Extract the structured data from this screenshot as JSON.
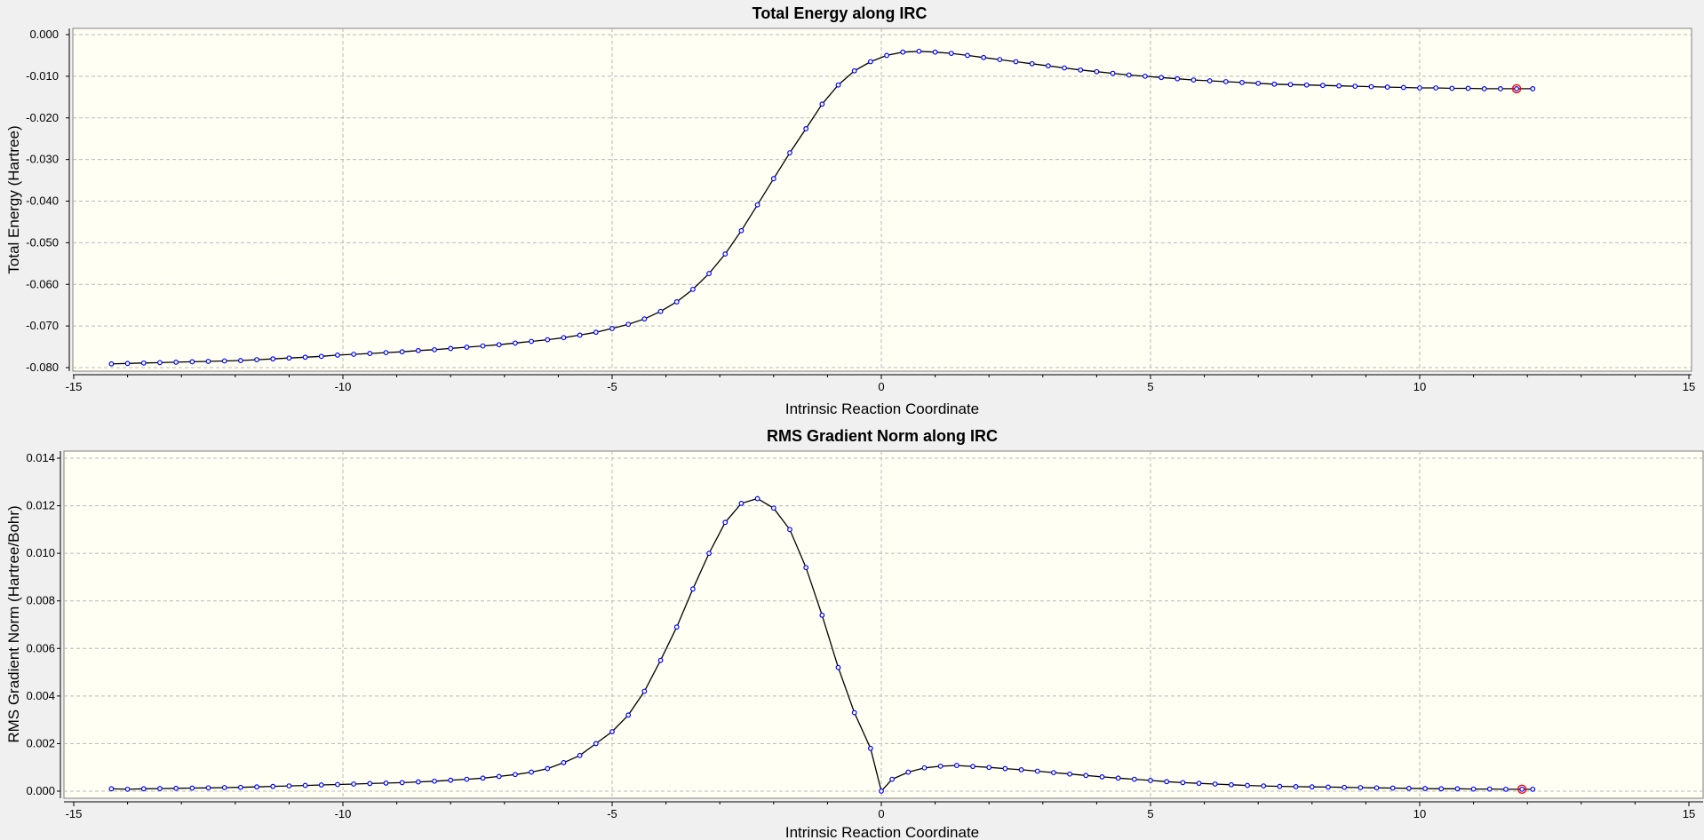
{
  "colors": {
    "background": "#f0f0f0",
    "plot_area": "#fffff4",
    "grid": "#b8b8b8",
    "line": "#000000",
    "marker": "#0000ff",
    "current_point": "#ff0000"
  },
  "chart_data": [
    {
      "type": "line",
      "title": "Total Energy along IRC",
      "xlabel": "Intrinsic Reaction Coordinate",
      "ylabel": "Total Energy (Hartree)",
      "xlim": [
        -15,
        15
      ],
      "ylim": [
        -0.08,
        0.0
      ],
      "xticks": [
        -15,
        -10,
        -5,
        0,
        5,
        10,
        15
      ],
      "xtick_labels": [
        "-15",
        "-10",
        "-5",
        "0",
        "5",
        "10",
        "15"
      ],
      "yticks": [
        0.0,
        -0.01,
        -0.02,
        -0.03,
        -0.04,
        -0.05,
        -0.06,
        -0.07,
        -0.08
      ],
      "ytick_labels": [
        "0.000",
        "-0.010",
        "-0.020",
        "-0.030",
        "-0.040",
        "-0.050",
        "-0.060",
        "-0.070",
        "-0.080"
      ],
      "grid": true,
      "markers": true,
      "highlight_x": 11.9,
      "x": [
        -14.3,
        -14.0,
        -13.7,
        -13.4,
        -13.1,
        -12.8,
        -12.5,
        -12.2,
        -11.9,
        -11.6,
        -11.3,
        -11.0,
        -10.7,
        -10.4,
        -10.1,
        -9.8,
        -9.5,
        -9.2,
        -8.9,
        -8.6,
        -8.3,
        -8.0,
        -7.7,
        -7.4,
        -7.1,
        -6.8,
        -6.5,
        -6.2,
        -5.9,
        -5.6,
        -5.3,
        -5.0,
        -4.7,
        -4.4,
        -4.1,
        -3.8,
        -3.5,
        -3.2,
        -2.9,
        -2.6,
        -2.3,
        -2.0,
        -1.7,
        -1.4,
        -1.1,
        -0.8,
        -0.5,
        -0.2,
        0.1,
        0.4,
        0.7,
        1.0,
        1.3,
        1.6,
        1.9,
        2.2,
        2.5,
        2.8,
        3.1,
        3.4,
        3.7,
        4.0,
        4.3,
        4.6,
        4.9,
        5.2,
        5.5,
        5.8,
        6.1,
        6.4,
        6.7,
        7.0,
        7.3,
        7.6,
        7.9,
        8.2,
        8.5,
        8.8,
        9.1,
        9.4,
        9.7,
        10.0,
        10.3,
        10.6,
        10.9,
        11.2,
        11.5,
        11.8,
        12.1
      ],
      "y": [
        -0.0791,
        -0.079,
        -0.0789,
        -0.0788,
        -0.0787,
        -0.0786,
        -0.0785,
        -0.0784,
        -0.0783,
        -0.0781,
        -0.0779,
        -0.0777,
        -0.0775,
        -0.0773,
        -0.077,
        -0.0768,
        -0.0766,
        -0.0764,
        -0.0762,
        -0.0759,
        -0.0757,
        -0.0754,
        -0.0751,
        -0.0748,
        -0.0745,
        -0.0741,
        -0.0737,
        -0.0733,
        -0.0728,
        -0.0722,
        -0.0715,
        -0.0706,
        -0.0696,
        -0.0683,
        -0.0665,
        -0.0642,
        -0.0612,
        -0.0574,
        -0.0527,
        -0.0471,
        -0.0409,
        -0.0346,
        -0.0284,
        -0.0226,
        -0.0167,
        -0.0121,
        -0.0087,
        -0.0065,
        -0.005,
        -0.0042,
        -0.004,
        -0.0042,
        -0.0045,
        -0.005,
        -0.0055,
        -0.006,
        -0.0065,
        -0.007,
        -0.0075,
        -0.008,
        -0.0085,
        -0.0089,
        -0.0093,
        -0.0097,
        -0.01,
        -0.0103,
        -0.0106,
        -0.0109,
        -0.0111,
        -0.0113,
        -0.0115,
        -0.0117,
        -0.0119,
        -0.012,
        -0.0121,
        -0.0122,
        -0.0123,
        -0.0124,
        -0.0125,
        -0.0126,
        -0.0127,
        -0.0128,
        -0.0128,
        -0.0129,
        -0.0129,
        -0.013,
        -0.013,
        -0.013,
        -0.013
      ]
    },
    {
      "type": "line",
      "title": "RMS Gradient Norm along IRC",
      "xlabel": "Intrinsic Reaction Coordinate",
      "ylabel": "RMS Gradient Norm (Hartree/Bohr)",
      "xlim": [
        -15,
        15
      ],
      "ylim": [
        0.0,
        0.014
      ],
      "xticks": [
        -15,
        -10,
        -5,
        0,
        5,
        10,
        15
      ],
      "xtick_labels": [
        "-15",
        "-10",
        "-5",
        "0",
        "5",
        "10",
        "15"
      ],
      "yticks": [
        0.014,
        0.012,
        0.01,
        0.008,
        0.006,
        0.004,
        0.002,
        0.0
      ],
      "ytick_labels": [
        "0.014",
        "0.012",
        "0.010",
        "0.008",
        "0.006",
        "0.004",
        "0.002",
        "0.000"
      ],
      "grid": true,
      "markers": true,
      "highlight_x": 11.9,
      "x": [
        -14.3,
        -14.0,
        -13.7,
        -13.4,
        -13.1,
        -12.8,
        -12.5,
        -12.2,
        -11.9,
        -11.6,
        -11.3,
        -11.0,
        -10.7,
        -10.4,
        -10.1,
        -9.8,
        -9.5,
        -9.2,
        -8.9,
        -8.6,
        -8.3,
        -8.0,
        -7.7,
        -7.4,
        -7.1,
        -6.8,
        -6.5,
        -6.2,
        -5.9,
        -5.6,
        -5.3,
        -5.0,
        -4.7,
        -4.4,
        -4.1,
        -3.8,
        -3.5,
        -3.2,
        -2.9,
        -2.6,
        -2.3,
        -2.0,
        -1.7,
        -1.4,
        -1.1,
        -0.8,
        -0.5,
        -0.2,
        0.0,
        0.2,
        0.5,
        0.8,
        1.1,
        1.4,
        1.7,
        2.0,
        2.3,
        2.6,
        2.9,
        3.2,
        3.5,
        3.8,
        4.1,
        4.4,
        4.7,
        5.0,
        5.3,
        5.6,
        5.9,
        6.2,
        6.5,
        6.8,
        7.1,
        7.4,
        7.7,
        8.0,
        8.3,
        8.6,
        8.9,
        9.2,
        9.5,
        9.8,
        10.1,
        10.4,
        10.7,
        11.0,
        11.3,
        11.6,
        11.9,
        12.1
      ],
      "y": [
        0.0001,
        8e-05,
        0.0001,
        0.00011,
        0.00012,
        0.00013,
        0.00014,
        0.00015,
        0.00016,
        0.00018,
        0.0002,
        0.00022,
        0.00024,
        0.00026,
        0.00028,
        0.0003,
        0.00032,
        0.00034,
        0.00036,
        0.00039,
        0.00042,
        0.00046,
        0.0005,
        0.00055,
        0.00062,
        0.0007,
        0.0008,
        0.00095,
        0.0012,
        0.0015,
        0.002,
        0.0025,
        0.0032,
        0.0042,
        0.0055,
        0.0069,
        0.0085,
        0.01,
        0.0113,
        0.0121,
        0.0123,
        0.0119,
        0.011,
        0.0094,
        0.0074,
        0.0052,
        0.0033,
        0.0018,
        0.0,
        0.0005,
        0.0008,
        0.00098,
        0.00105,
        0.00108,
        0.00104,
        0.001,
        0.00095,
        0.0009,
        0.00084,
        0.00078,
        0.00072,
        0.00066,
        0.0006,
        0.00055,
        0.0005,
        0.00045,
        0.0004,
        0.00036,
        0.00033,
        0.0003,
        0.00027,
        0.00024,
        0.00022,
        0.0002,
        0.00019,
        0.00018,
        0.00017,
        0.00016,
        0.00015,
        0.00014,
        0.00013,
        0.00012,
        0.00011,
        0.0001,
        0.0001,
        9e-05,
        9e-05,
        8e-05,
        8e-05,
        8e-05
      ]
    }
  ]
}
